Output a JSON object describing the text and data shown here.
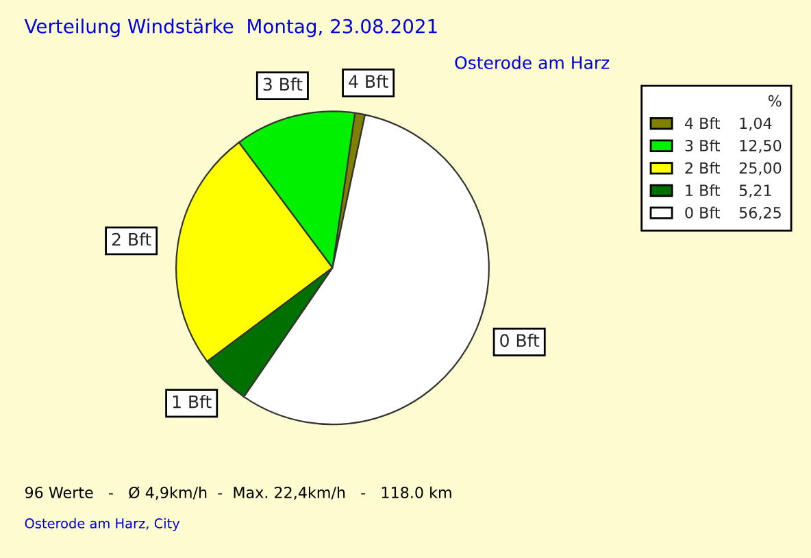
{
  "chart_data": {
    "type": "pie",
    "title": "Verteilung Windstärke  Montag, 23.08.2021",
    "subtitle": "Osterode am Harz",
    "categories": [
      "4 Bft",
      "3 Bft",
      "2 Bft",
      "1 Bft",
      "0 Bft"
    ],
    "values": [
      1.04,
      12.5,
      25.0,
      5.21,
      56.25
    ],
    "value_labels": [
      "1,04",
      "12,50",
      "25,00",
      "5,21",
      "56,25"
    ],
    "colors": [
      "#808000",
      "#00f000",
      "#ffff00",
      "#007000",
      "#ffffff"
    ],
    "legend": "top right",
    "legend_title": "%",
    "annotations": [
      "96 Werte   -   Ø 4,9km/h  -  Max. 22,4km/h   -   118.0 km",
      "Osterode am Harz, City"
    ]
  }
}
